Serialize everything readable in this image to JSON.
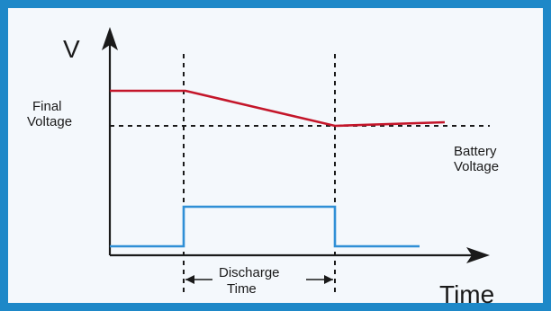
{
  "y_axis_label": "V",
  "x_axis_label": "Time",
  "final_voltage": {
    "line1": "Final",
    "line2": "Voltage"
  },
  "battery_voltage": {
    "line1": "Battery",
    "line2": "Voltage"
  },
  "discharge_time": {
    "line1": "Discharge",
    "line2": "Time"
  },
  "colors": {
    "frame": "#1e88c8",
    "voltage_curve": "#c4162a",
    "current_pulse": "#2f8fd6",
    "axes": "#1a1a1a"
  }
}
